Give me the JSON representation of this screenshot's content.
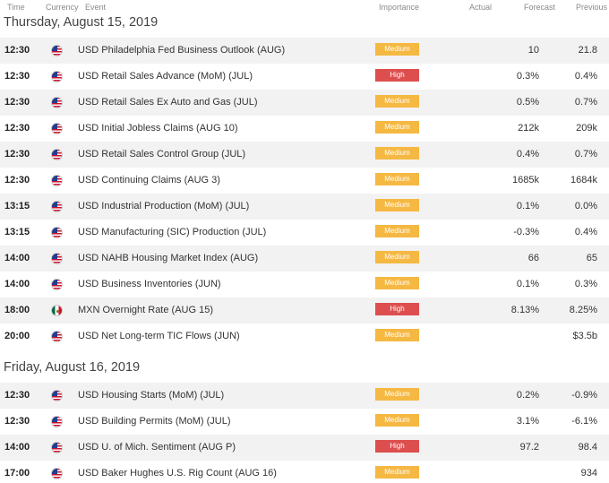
{
  "columns": {
    "time": "Time",
    "currency": "Currency",
    "event": "Event",
    "importance": "Importance",
    "actual": "Actual",
    "forecast": "Forecast",
    "previous": "Previous"
  },
  "days": [
    {
      "title": "Thursday, August 15, 2019",
      "events": [
        {
          "time": "12:30",
          "flag": "us-flag-icon",
          "event": "USD Philadelphia Fed Business Outlook (AUG)",
          "importance": "Medium",
          "actual": "",
          "forecast": "10",
          "previous": "21.8"
        },
        {
          "time": "12:30",
          "flag": "us-flag-icon",
          "event": "USD Retail Sales Advance (MoM) (JUL)",
          "importance": "High",
          "actual": "",
          "forecast": "0.3%",
          "previous": "0.4%"
        },
        {
          "time": "12:30",
          "flag": "us-flag-icon",
          "event": "USD Retail Sales Ex Auto and Gas (JUL)",
          "importance": "Medium",
          "actual": "",
          "forecast": "0.5%",
          "previous": "0.7%"
        },
        {
          "time": "12:30",
          "flag": "us-flag-icon",
          "event": "USD Initial Jobless Claims (AUG 10)",
          "importance": "Medium",
          "actual": "",
          "forecast": "212k",
          "previous": "209k"
        },
        {
          "time": "12:30",
          "flag": "us-flag-icon",
          "event": "USD Retail Sales Control Group (JUL)",
          "importance": "Medium",
          "actual": "",
          "forecast": "0.4%",
          "previous": "0.7%"
        },
        {
          "time": "12:30",
          "flag": "us-flag-icon",
          "event": "USD Continuing Claims (AUG 3)",
          "importance": "Medium",
          "actual": "",
          "forecast": "1685k",
          "previous": "1684k"
        },
        {
          "time": "13:15",
          "flag": "us-flag-icon",
          "event": "USD Industrial Production (MoM) (JUL)",
          "importance": "Medium",
          "actual": "",
          "forecast": "0.1%",
          "previous": "0.0%"
        },
        {
          "time": "13:15",
          "flag": "us-flag-icon",
          "event": "USD Manufacturing (SIC) Production (JUL)",
          "importance": "Medium",
          "actual": "",
          "forecast": "-0.3%",
          "previous": "0.4%"
        },
        {
          "time": "14:00",
          "flag": "us-flag-icon",
          "event": "USD NAHB Housing Market Index (AUG)",
          "importance": "Medium",
          "actual": "",
          "forecast": "66",
          "previous": "65"
        },
        {
          "time": "14:00",
          "flag": "us-flag-icon",
          "event": "USD Business Inventories (JUN)",
          "importance": "Medium",
          "actual": "",
          "forecast": "0.1%",
          "previous": "0.3%"
        },
        {
          "time": "18:00",
          "flag": "mx-flag-icon",
          "event": "MXN Overnight Rate (AUG 15)",
          "importance": "High",
          "actual": "",
          "forecast": "8.13%",
          "previous": "8.25%"
        },
        {
          "time": "20:00",
          "flag": "us-flag-icon",
          "event": "USD Net Long-term TIC Flows (JUN)",
          "importance": "Medium",
          "actual": "",
          "forecast": "",
          "previous": "$3.5b"
        }
      ]
    },
    {
      "title": "Friday, August 16, 2019",
      "events": [
        {
          "time": "12:30",
          "flag": "us-flag-icon",
          "event": "USD Housing Starts (MoM) (JUL)",
          "importance": "Medium",
          "actual": "",
          "forecast": "0.2%",
          "previous": "-0.9%"
        },
        {
          "time": "12:30",
          "flag": "us-flag-icon",
          "event": "USD Building Permits (MoM) (JUL)",
          "importance": "Medium",
          "actual": "",
          "forecast": "3.1%",
          "previous": "-6.1%"
        },
        {
          "time": "14:00",
          "flag": "us-flag-icon",
          "event": "USD U. of Mich. Sentiment (AUG P)",
          "importance": "High",
          "actual": "",
          "forecast": "97.2",
          "previous": "98.4"
        },
        {
          "time": "17:00",
          "flag": "us-flag-icon",
          "event": "USD Baker Hughes U.S. Rig Count (AUG 16)",
          "importance": "Medium",
          "actual": "",
          "forecast": "",
          "previous": "934"
        }
      ]
    }
  ],
  "colors": {
    "medium": "#f5b842",
    "high": "#dd4e4e",
    "row_shade": "#f2f2f2"
  }
}
